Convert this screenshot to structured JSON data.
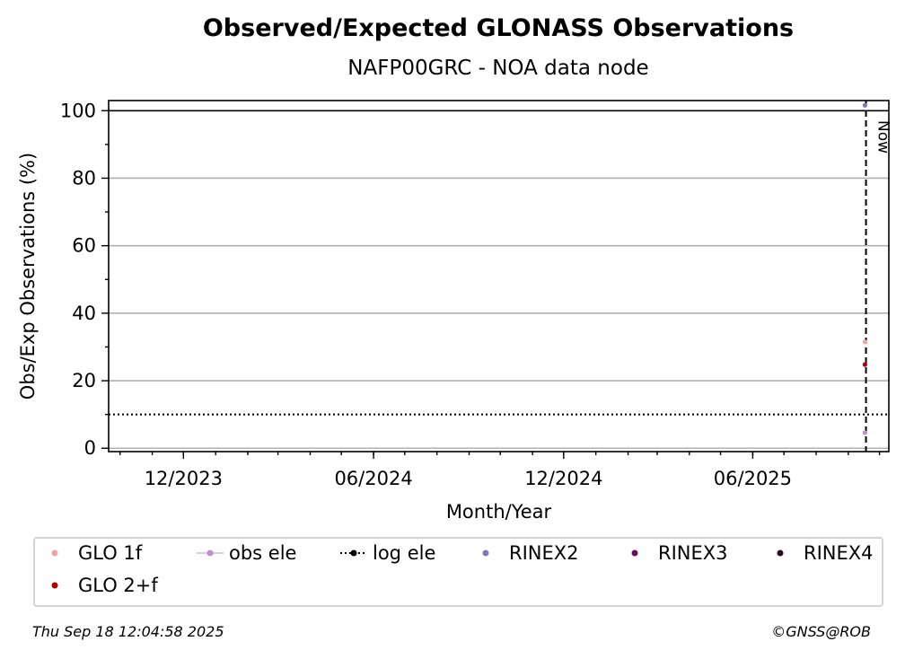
{
  "header": {
    "title": "Observed/Expected GLONASS Observations",
    "subtitle": "NAFP00GRC - NOA data node"
  },
  "footer": {
    "timestamp": "Thu Sep 18 12:04:58 2025",
    "credit": "©GNSS@ROB"
  },
  "chart_data": {
    "type": "scatter",
    "title": "Observed/Expected GLONASS Observations",
    "subtitle": "NAFP00GRC - NOA data node",
    "xlabel": "Month/Year",
    "ylabel": "Obs/Exp Observations (%)",
    "x_ticks": [
      "12/2023",
      "06/2024",
      "12/2024",
      "06/2025"
    ],
    "x_tick_dates": [
      "2023-12-01",
      "2024-06-01",
      "2024-12-01",
      "2025-06-01"
    ],
    "xlim": [
      "2023-09-20",
      "2025-10-10"
    ],
    "ylim": [
      -1,
      103
    ],
    "y_ticks": [
      0,
      20,
      40,
      60,
      80,
      100
    ],
    "grid": "horizontal",
    "reference_lines": [
      {
        "type": "horizontal",
        "y": 100,
        "style": "solid"
      },
      {
        "type": "horizontal",
        "y": 10,
        "style": "dotted"
      },
      {
        "type": "vertical",
        "x": "2025-09-18",
        "style": "dashed",
        "label": "Now"
      }
    ],
    "legend_position": "below",
    "series": [
      {
        "name": "GLO 1f",
        "color": "#f4a3a3",
        "marker": "dot",
        "points": [
          {
            "x": "2025-09-17",
            "y": 31.5
          }
        ]
      },
      {
        "name": "obs ele",
        "color": "#c38fd0",
        "marker": "dot-line",
        "points": [
          {
            "x": "2025-09-17",
            "y": 4.6
          }
        ]
      },
      {
        "name": "log ele",
        "color": "#000000",
        "marker": "dot-dotted-line",
        "points": []
      },
      {
        "name": "RINEX2",
        "color": "#7f79c0",
        "marker": "dot",
        "points": [
          {
            "x": "2025-09-17",
            "y": 101.6
          }
        ]
      },
      {
        "name": "RINEX3",
        "color": "#6b0b5a",
        "marker": "dot",
        "points": []
      },
      {
        "name": "RINEX4",
        "color": "#2b0a26",
        "marker": "dot",
        "points": []
      },
      {
        "name": "GLO 2+f",
        "color": "#b00000",
        "marker": "dot",
        "points": [
          {
            "x": "2025-09-17",
            "y": 24.8
          }
        ]
      }
    ]
  }
}
